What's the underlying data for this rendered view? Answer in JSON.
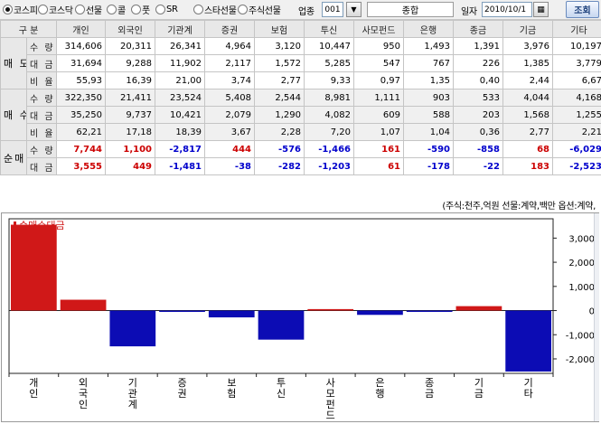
{
  "toolbar": {
    "markets": [
      {
        "label": "코스피",
        "selected": true
      },
      {
        "label": "코스닥",
        "selected": false
      },
      {
        "label": "선물",
        "selected": false
      },
      {
        "label": "콜",
        "selected": false
      },
      {
        "label": "풋",
        "selected": false
      },
      {
        "label": "SR",
        "selected": false
      },
      {
        "label": "스타선물",
        "selected": false
      },
      {
        "label": "주식선물",
        "selected": false
      }
    ],
    "sector_label": "업종",
    "sector_code": "001",
    "sector_name": "종합",
    "date_label": "일자",
    "date_value": "2010/10/1",
    "query_label": "조회"
  },
  "table": {
    "headers": [
      "구 분",
      "개인",
      "외국인",
      "기관계",
      "증권",
      "보험",
      "투신",
      "사모펀드",
      "은행",
      "종금",
      "기금",
      "기타"
    ],
    "groups": [
      {
        "label": "매 도",
        "rows": [
          {
            "label": "수 량",
            "values": [
              "314,606",
              "20,311",
              "26,341",
              "4,964",
              "3,120",
              "10,447",
              "950",
              "1,493",
              "1,391",
              "3,976",
              "10,197"
            ]
          },
          {
            "label": "대 금",
            "values": [
              "31,694",
              "9,288",
              "11,902",
              "2,117",
              "1,572",
              "5,285",
              "547",
              "767",
              "226",
              "1,385",
              "3,779"
            ]
          },
          {
            "label": "비 율",
            "values": [
              "55,93",
              "16,39",
              "21,00",
              "3,74",
              "2,77",
              "9,33",
              "0,97",
              "1,35",
              "0,40",
              "2,44",
              "6,67"
            ]
          }
        ]
      },
      {
        "label": "매 수",
        "rows": [
          {
            "label": "수 량",
            "values": [
              "322,350",
              "21,411",
              "23,524",
              "5,408",
              "2,544",
              "8,981",
              "1,111",
              "903",
              "533",
              "4,044",
              "4,168"
            ]
          },
          {
            "label": "대 금",
            "values": [
              "35,250",
              "9,737",
              "10,421",
              "2,079",
              "1,290",
              "4,082",
              "609",
              "588",
              "203",
              "1,568",
              "1,255"
            ]
          },
          {
            "label": "비 율",
            "values": [
              "62,21",
              "17,18",
              "18,39",
              "3,67",
              "2,28",
              "7,20",
              "1,07",
              "1,04",
              "0,36",
              "2,77",
              "2,21"
            ]
          }
        ]
      },
      {
        "label": "순매",
        "rows": [
          {
            "label": "수 량",
            "values": [
              "7,744",
              "1,100",
              "-2,817",
              "444",
              "-576",
              "-1,466",
              "161",
              "-590",
              "-858",
              "68",
              "-6,029"
            ]
          },
          {
            "label": "대 금",
            "values": [
              "3,555",
              "449",
              "-1,481",
              "-38",
              "-282",
              "-1,203",
              "61",
              "-178",
              "-22",
              "183",
              "-2,523"
            ]
          }
        ]
      }
    ]
  },
  "note": "(주식:천주,억원 선물:계약,백만 옵션:계약,",
  "colors": {
    "positive": "#d01818",
    "negative": "#0c0cb4"
  },
  "chart_data": {
    "type": "bar",
    "legend": "순매수대금",
    "legend_position": "top-left",
    "categories": [
      "개인",
      "외국인",
      "기관계",
      "증권",
      "보험",
      "투신",
      "사모펀드",
      "은행",
      "종금",
      "기금",
      "기타"
    ],
    "series": [
      {
        "name": "순매수대금",
        "values": [
          3555,
          449,
          -1481,
          -38,
          -282,
          -1203,
          61,
          -178,
          -22,
          183,
          -2523
        ]
      }
    ],
    "yticks": [
      3000,
      2000,
      1000,
      0,
      -1000,
      -2000
    ],
    "ytick_labels": [
      "3,000",
      "2,000",
      "1,000",
      "0",
      "-1,000",
      "-2,000"
    ],
    "ylim": [
      -2600,
      3800
    ],
    "y_axis_position": "right",
    "grid": false
  }
}
